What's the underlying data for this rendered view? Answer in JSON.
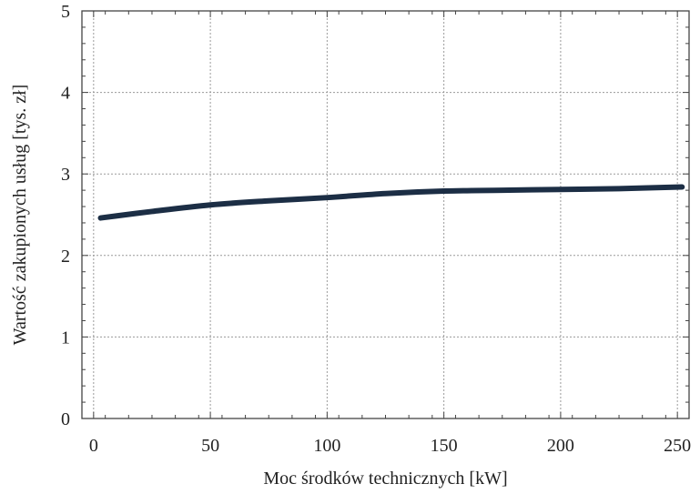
{
  "chart_data": {
    "type": "line",
    "xlabel": "Moc środków technicznych [kW]",
    "ylabel": "Wartość zakupionych usług [tys. zł]",
    "xlim": [
      -5,
      255
    ],
    "ylim": [
      0,
      5
    ],
    "xticks": [
      0,
      50,
      100,
      150,
      200,
      250
    ],
    "yticks": [
      0,
      1,
      2,
      3,
      4,
      5
    ],
    "grid": true,
    "line_color": "#1c2e45",
    "series": [
      {
        "x": [
          3,
          25,
          50,
          75,
          100,
          125,
          150,
          175,
          200,
          225,
          252
        ],
        "y": [
          2.46,
          2.54,
          2.62,
          2.67,
          2.71,
          2.76,
          2.79,
          2.8,
          2.81,
          2.82,
          2.84
        ]
      }
    ]
  }
}
